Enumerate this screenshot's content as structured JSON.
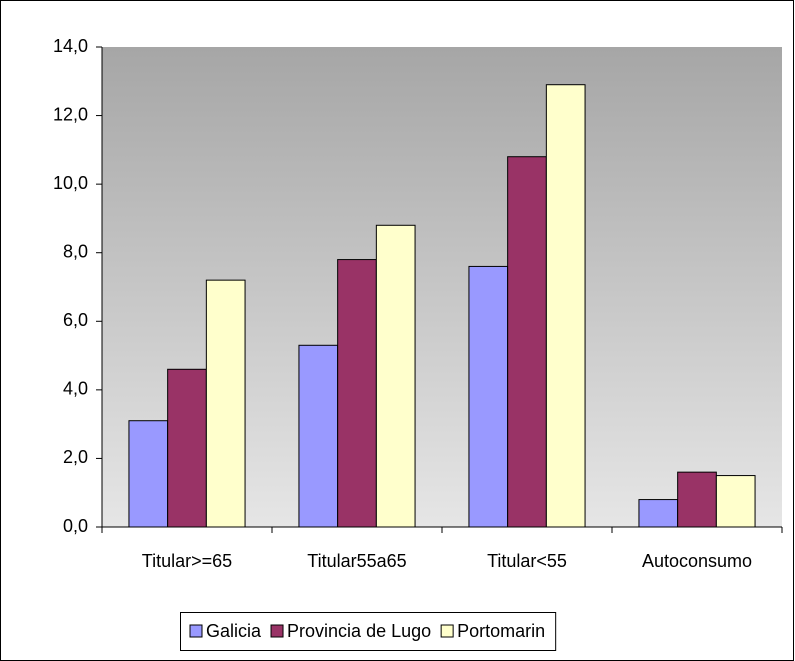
{
  "chart_data": {
    "type": "bar",
    "categories": [
      "Titular>=65",
      "Titular55a65",
      "Titular<55",
      "Autoconsumo"
    ],
    "series": [
      {
        "name": "Galicia",
        "color": "#9999ff",
        "values": [
          3.1,
          5.3,
          7.6,
          0.8
        ]
      },
      {
        "name": "Provincia de Lugo",
        "color": "#993366",
        "values": [
          4.6,
          7.8,
          10.8,
          1.6
        ]
      },
      {
        "name": "Portomarin",
        "color": "#ffffcc",
        "values": [
          7.2,
          8.8,
          12.9,
          1.5
        ]
      }
    ],
    "ylim": [
      0,
      14
    ],
    "yticks": [
      {
        "value": 0,
        "label": "0,0"
      },
      {
        "value": 2,
        "label": "2,0"
      },
      {
        "value": 4,
        "label": "4,0"
      },
      {
        "value": 6,
        "label": "6,0"
      },
      {
        "value": 8,
        "label": "8,0"
      },
      {
        "value": 10,
        "label": "10,0"
      },
      {
        "value": 12,
        "label": "12,0"
      },
      {
        "value": 14,
        "label": "14,0"
      }
    ],
    "grid": false,
    "legend": "bottom"
  }
}
